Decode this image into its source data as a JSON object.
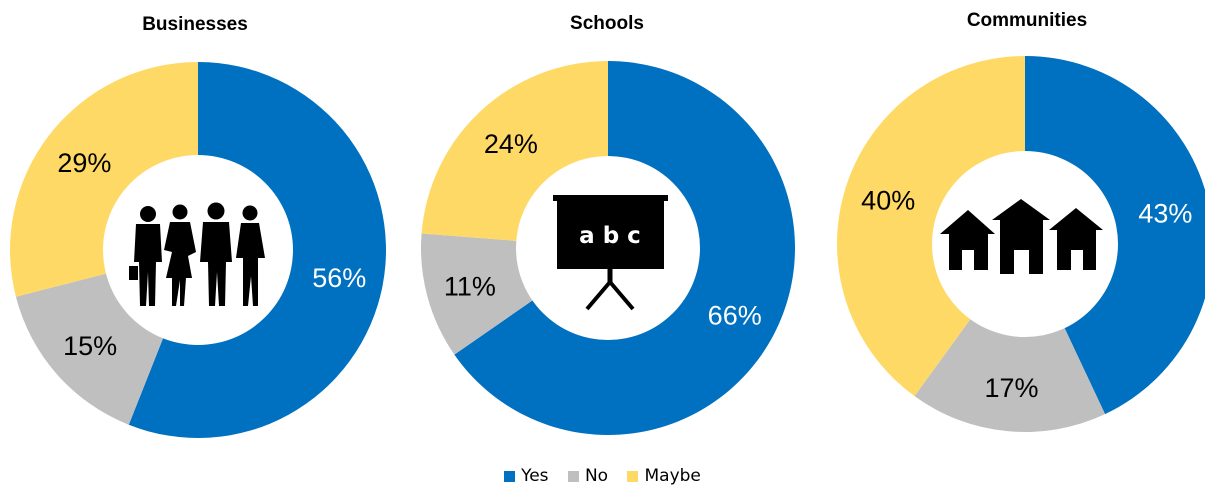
{
  "colors": {
    "yes": "#0070C0",
    "no": "#BFBFBF",
    "maybe": "#FFD966"
  },
  "legend": [
    {
      "label": "Yes",
      "color": "#0070C0"
    },
    {
      "label": "No",
      "color": "#BFBFBF"
    },
    {
      "label": "Maybe",
      "color": "#FFD966"
    }
  ],
  "chart_data": [
    {
      "type": "pie",
      "title": "Businesses",
      "icon": "business-people-icon",
      "categories": [
        "Yes",
        "No",
        "Maybe"
      ],
      "values": [
        56,
        15,
        29
      ],
      "labels": [
        "56%",
        "15%",
        "29%"
      ]
    },
    {
      "type": "pie",
      "title": "Schools",
      "icon": "abc-board-icon",
      "categories": [
        "Yes",
        "No",
        "Maybe"
      ],
      "values": [
        66,
        11,
        24
      ],
      "labels": [
        "66%",
        "11%",
        "24%"
      ]
    },
    {
      "type": "pie",
      "title": "Communities",
      "icon": "houses-icon",
      "categories": [
        "Yes",
        "No",
        "Maybe"
      ],
      "values": [
        43,
        17,
        40
      ],
      "labels": [
        "43%",
        "17%",
        "40%"
      ]
    }
  ],
  "board_text": "a b c"
}
